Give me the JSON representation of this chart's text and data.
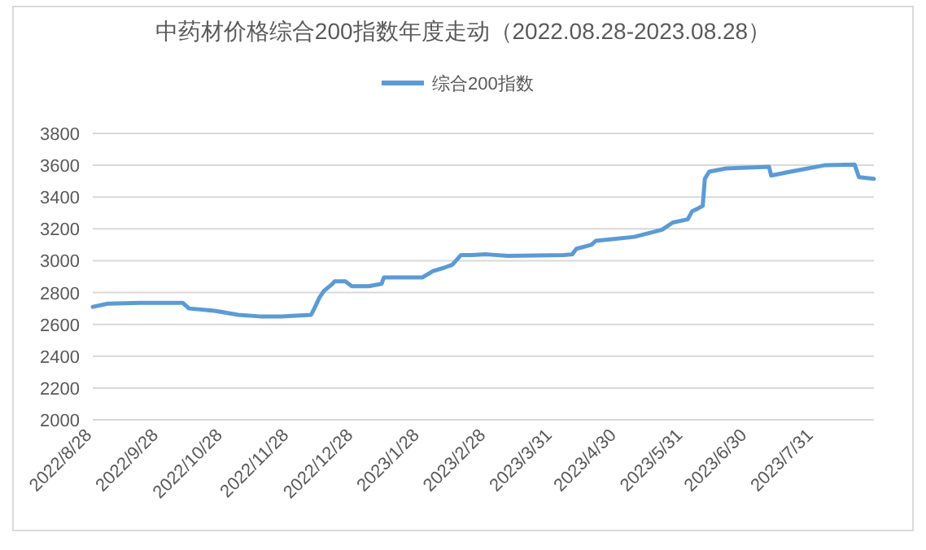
{
  "chart_data": {
    "type": "line",
    "title": "中药材价格综合200指数年度走动（2022.08.28-2023.08.28）",
    "x": [
      "2022-08-28",
      "2022-09-04",
      "2022-09-19",
      "2022-10-09",
      "2022-10-12",
      "2022-10-24",
      "2022-11-04",
      "2022-11-14",
      "2022-11-24",
      "2022-12-08",
      "2022-12-09",
      "2022-12-12",
      "2022-12-14",
      "2022-12-18",
      "2022-12-19",
      "2022-12-24",
      "2022-12-27",
      "2023-01-04",
      "2023-01-10",
      "2023-01-11",
      "2023-01-29",
      "2023-02-03",
      "2023-02-08",
      "2023-02-12",
      "2023-02-16",
      "2023-02-21",
      "2023-02-28",
      "2023-03-10",
      "2023-04-05",
      "2023-04-09",
      "2023-04-11",
      "2023-04-18",
      "2023-04-20",
      "2023-05-08",
      "2023-05-21",
      "2023-05-26",
      "2023-06-02",
      "2023-06-04",
      "2023-06-07",
      "2023-06-09",
      "2023-06-10",
      "2023-06-12",
      "2023-06-20",
      "2023-07-10",
      "2023-07-11",
      "2023-07-20",
      "2023-08-05",
      "2023-08-19",
      "2023-08-21",
      "2023-08-28"
    ],
    "series": [
      {
        "name": "综合200指数",
        "color": "#5b9bd5",
        "values": [
          2710,
          2730,
          2735,
          2735,
          2700,
          2685,
          2660,
          2650,
          2650,
          2660,
          2685,
          2770,
          2810,
          2855,
          2870,
          2870,
          2840,
          2840,
          2855,
          2895,
          2895,
          2935,
          2955,
          2975,
          3035,
          3035,
          3040,
          3030,
          3035,
          3040,
          3075,
          3100,
          3125,
          3150,
          3195,
          3240,
          3260,
          3310,
          3330,
          3345,
          3515,
          3560,
          3580,
          3590,
          3535,
          3560,
          3600,
          3605,
          3525,
          3515
        ]
      }
    ],
    "xlim": [
      "2022-08-28",
      "2023-08-28"
    ],
    "xticks": [
      {
        "value": "2022-08-28",
        "label": "2022/8/28"
      },
      {
        "value": "2022-09-28",
        "label": "2022/9/28"
      },
      {
        "value": "2022-10-28",
        "label": "2022/10/28"
      },
      {
        "value": "2022-11-28",
        "label": "2022/11/28"
      },
      {
        "value": "2022-12-28",
        "label": "2022/12/28"
      },
      {
        "value": "2023-01-28",
        "label": "2023/1/28"
      },
      {
        "value": "2023-02-28",
        "label": "2023/2/28"
      },
      {
        "value": "2023-03-31",
        "label": "2023/3/31"
      },
      {
        "value": "2023-04-30",
        "label": "2023/4/30"
      },
      {
        "value": "2023-05-31",
        "label": "2023/5/31"
      },
      {
        "value": "2023-06-30",
        "label": "2023/6/30"
      },
      {
        "value": "2023-07-31",
        "label": "2023/7/31"
      }
    ],
    "ylim": [
      2000,
      3800
    ],
    "yticks": [
      2000,
      2200,
      2400,
      2600,
      2800,
      3000,
      3200,
      3400,
      3600,
      3800
    ],
    "grid": "y",
    "legend": "top"
  }
}
